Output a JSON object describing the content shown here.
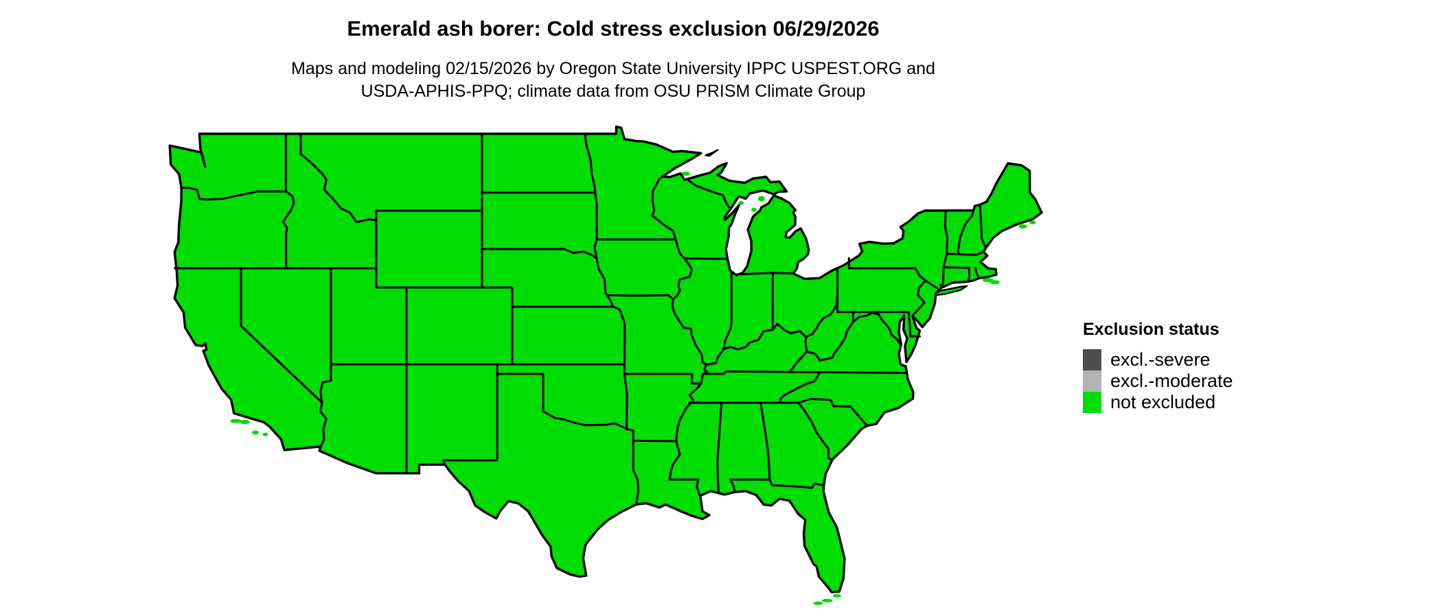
{
  "header": {
    "title": "Emerald ash borer: Cold stress exclusion 06/29/2026",
    "subtitle_line1": "Maps and modeling 02/15/2026 by Oregon State University IPPC USPEST.ORG and",
    "subtitle_line2": "USDA-APHIS-PPQ; climate data from OSU PRISM Climate Group"
  },
  "legend": {
    "title": "Exclusion status",
    "items": [
      {
        "label": "excl.-severe",
        "color": "#4d4d4d"
      },
      {
        "label": "excl.-moderate",
        "color": "#b3b3b3"
      },
      {
        "label": "not excluded",
        "color": "#00dd00"
      }
    ]
  },
  "map_data": {
    "type": "choropleth",
    "region": "Contiguous United States with state boundaries",
    "projection": "equirectangular (lat/lon)",
    "categories": [
      "excl.-severe",
      "excl.-moderate",
      "not excluded"
    ],
    "depicted_value_for_all_states": "not excluded",
    "land_fill_color": "#00dd00",
    "boundary_color": "#000000",
    "background_color": "#ffffff"
  }
}
